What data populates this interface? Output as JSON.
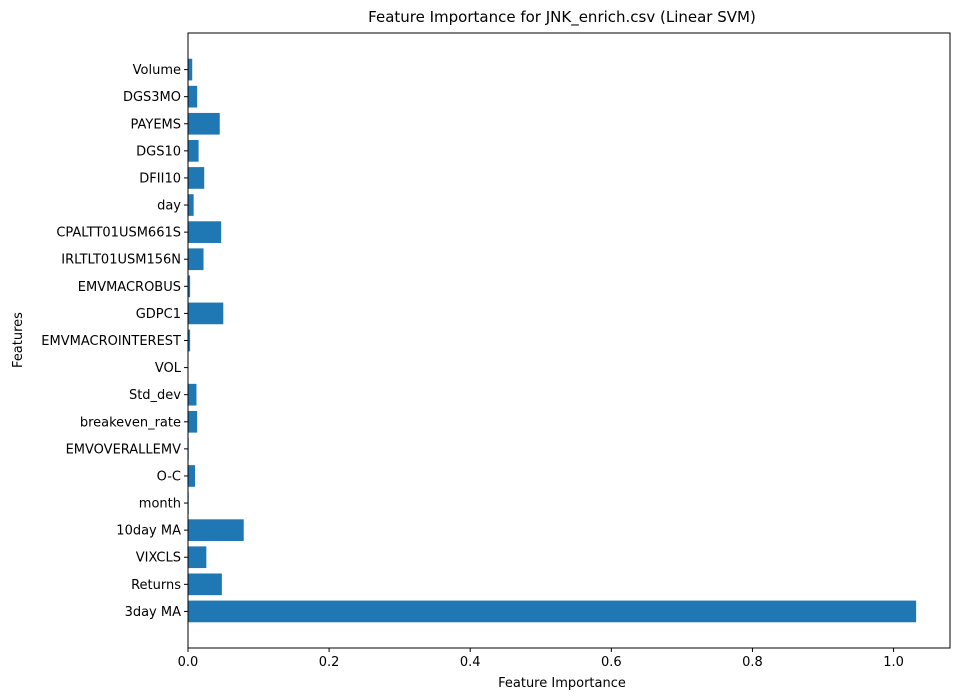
{
  "chart_data": {
    "type": "bar",
    "orientation": "horizontal",
    "title": "Feature Importance for JNK_enrich.csv (Linear SVM)",
    "xlabel": "Feature Importance",
    "ylabel": "Features",
    "xlim": [
      0,
      1.08
    ],
    "xticks": [
      0,
      0.2,
      0.4,
      0.6,
      0.8,
      1.0
    ],
    "xtick_labels": [
      "0.0",
      "0.2",
      "0.4",
      "0.6",
      "0.8",
      "1.0"
    ],
    "grid": false,
    "bar_color": "#1f77b4",
    "categories": [
      "3day MA",
      "Returns",
      "VIXCLS",
      "10day MA",
      "month",
      "O-C",
      "EMVOVERALLEMV",
      "breakeven_rate",
      "Std_dev",
      "VOL",
      "EMVMACROINTEREST",
      "GDPC1",
      "EMVMACROBUS",
      "IRLTLT01USM156N",
      "CPALTT01USM661S",
      "day",
      "DFII10",
      "DGS10",
      "PAYEMS",
      "DGS3MO",
      "Volume"
    ],
    "values": [
      1.032,
      0.048,
      0.026,
      0.079,
      0.001,
      0.01,
      0.001,
      0.013,
      0.012,
      0.0005,
      0.003,
      0.05,
      0.003,
      0.022,
      0.047,
      0.008,
      0.023,
      0.015,
      0.045,
      0.013,
      0.006
    ]
  }
}
